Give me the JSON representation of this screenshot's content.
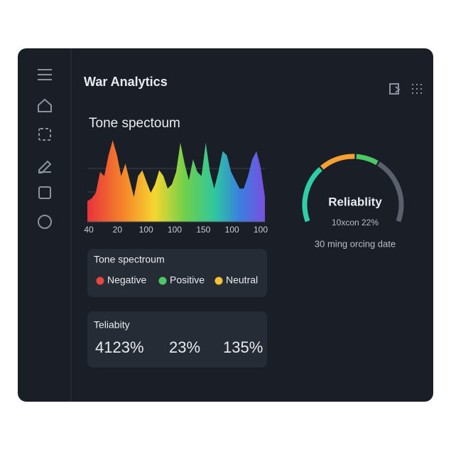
{
  "header": {
    "title": "War Analytics"
  },
  "spectrum": {
    "title": "Tone spectoum",
    "values": [
      25,
      28,
      35,
      60,
      55,
      80,
      98,
      80,
      55,
      70,
      50,
      30,
      55,
      62,
      48,
      35,
      45,
      62,
      55,
      40,
      45,
      60,
      95,
      70,
      50,
      75,
      60,
      55,
      95,
      60,
      40,
      60,
      85,
      80,
      60,
      50,
      40,
      40,
      55,
      75,
      85,
      65,
      30
    ],
    "ylim": [
      0,
      100
    ],
    "x_labels": [
      40,
      20,
      100,
      100,
      150,
      100,
      100
    ]
  },
  "legend": {
    "title": "Tone spectroum",
    "items": [
      {
        "label": "Negative",
        "color": "#e8453c"
      },
      {
        "label": "Positive",
        "color": "#4cc864"
      },
      {
        "label": "Neutral",
        "color": "#f2c232"
      }
    ]
  },
  "reliability_box": {
    "title": "Teliabity",
    "values": [
      "4123%",
      "23%",
      "135%"
    ]
  },
  "gauge": {
    "title": "Reliablity",
    "subtitle": "10xcon 22%",
    "caption": "30 ming orcing date"
  }
}
